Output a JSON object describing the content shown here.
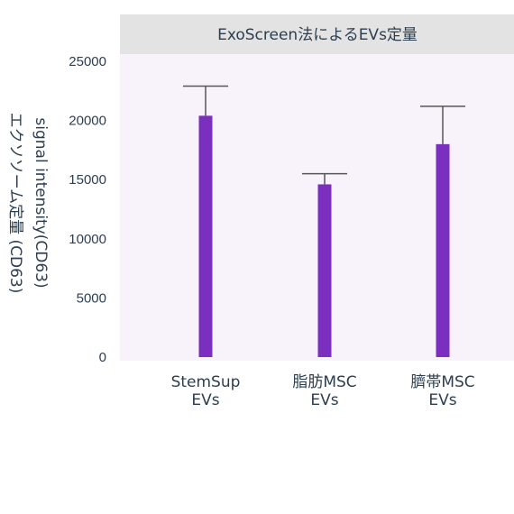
{
  "chart_data": {
    "type": "bar",
    "title": "ExoScreen法によるEVs定量",
    "ylabel_lines": [
      "signal intensity(CD63)",
      "エクソソーム定量 (CD63)"
    ],
    "xlabel": "",
    "categories": [
      [
        "StemSup",
        "EVs"
      ],
      [
        "脂肪MSC",
        "EVs"
      ],
      [
        "臍帯MSC",
        "EVs"
      ]
    ],
    "values": [
      20400,
      14600,
      18000
    ],
    "error_upper": [
      22900,
      15500,
      21200
    ],
    "ylim": [
      0,
      25000
    ],
    "yticks": [
      0,
      5000,
      10000,
      15000,
      20000,
      25000
    ],
    "grid": false,
    "legend": "none",
    "colors": {
      "bar": "#7b2fbe",
      "errorbar": "#555555",
      "panel": "#f8f3fa",
      "title_strip": "#e3e3e3",
      "text": "#2c3e50"
    }
  }
}
